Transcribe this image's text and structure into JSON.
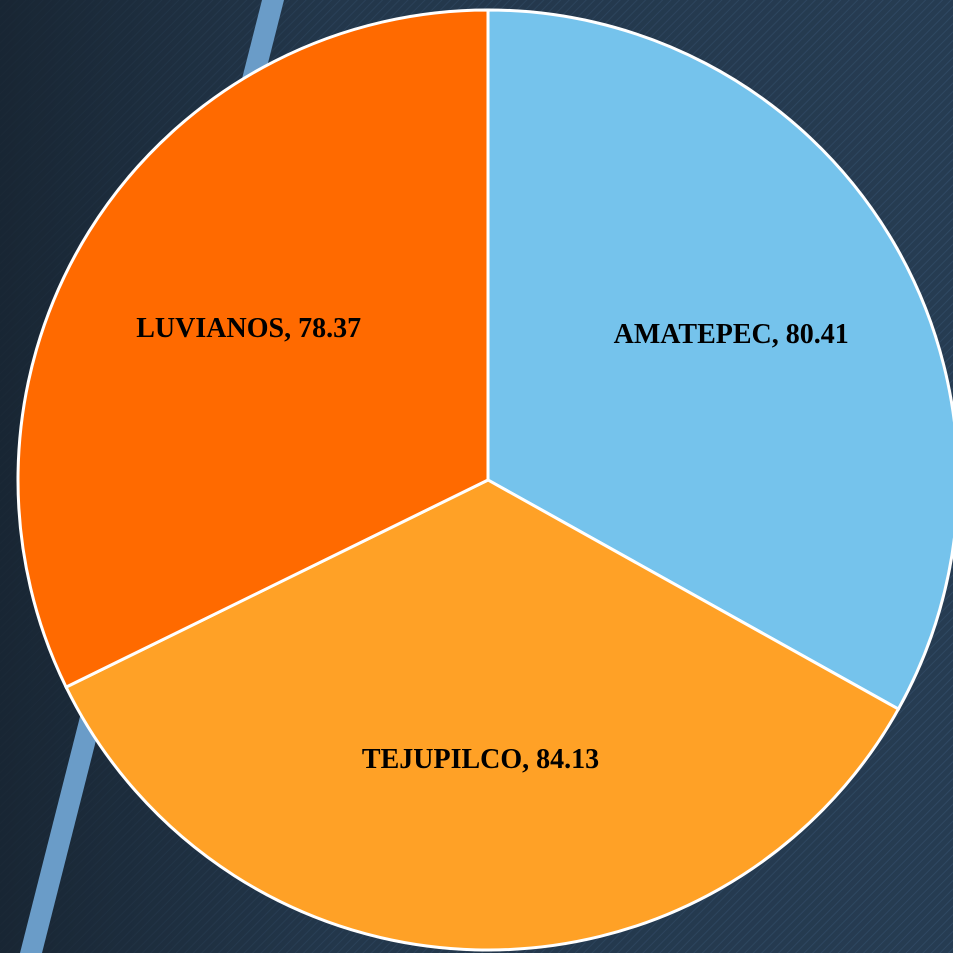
{
  "chart_data": {
    "type": "pie",
    "categories": [
      "AMATEPEC",
      "TEJUPILCO",
      "LUVIANOS"
    ],
    "values": [
      80.41,
      84.13,
      78.37
    ],
    "colors": [
      "#75c3ec",
      "#ffa126",
      "#ff6a00"
    ],
    "label_separator": ", "
  }
}
